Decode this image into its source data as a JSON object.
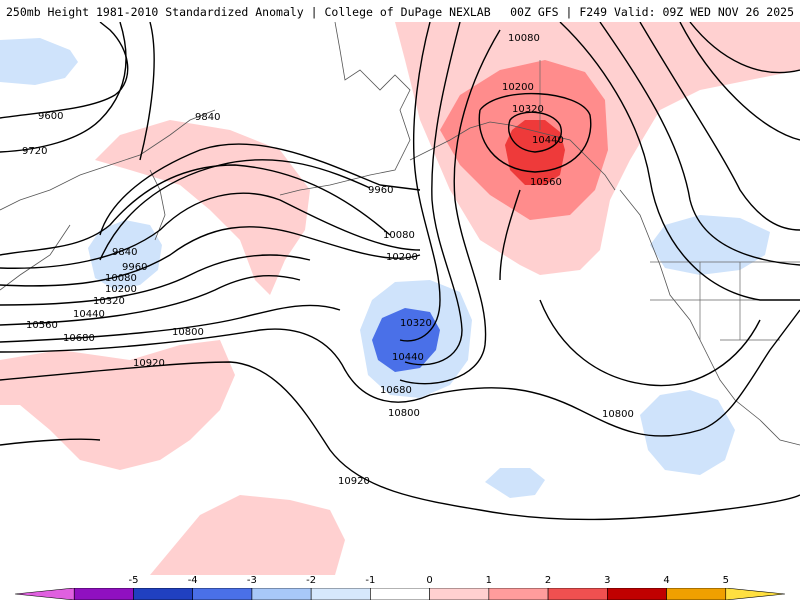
{
  "header": {
    "left_title": "250mb Height 1981-2010 Standardized Anomaly | College of DuPage NEXLAB",
    "right_title": "00Z GFS | F249 Valid: 09Z WED NOV 26 2025"
  },
  "contour_labels": [
    "10080",
    "9600",
    "9720",
    "9840",
    "10200",
    "10320",
    "10440",
    "9960",
    "10560",
    "9840",
    "9960",
    "10080",
    "10200",
    "10320",
    "10440",
    "10560",
    "10680",
    "10800",
    "10080",
    "10200",
    "10320",
    "10440",
    "10680",
    "10800",
    "10920",
    "10800",
    "10920"
  ],
  "colorbar": {
    "ticks": [
      "-5",
      "-4",
      "-3",
      "-2",
      "-1",
      "0",
      "1",
      "2",
      "3",
      "4",
      "5"
    ],
    "colors": [
      "#e060e0",
      "#9010c0",
      "#2040c0",
      "#4a70e8",
      "#a8c8f8",
      "#d6e8fc",
      "#ffffff",
      "#ffd0d0",
      "#ff9c9c",
      "#f05050",
      "#c00000",
      "#f0a000",
      "#ffe040"
    ]
  },
  "colors": {
    "anomaly_pos_1": "#ffd0d0",
    "anomaly_pos_2": "#ff8c8c",
    "anomaly_pos_3": "#ee3a3a",
    "anomaly_neg_1": "#cfe3fb",
    "anomaly_neg_2": "#4a70e8"
  }
}
